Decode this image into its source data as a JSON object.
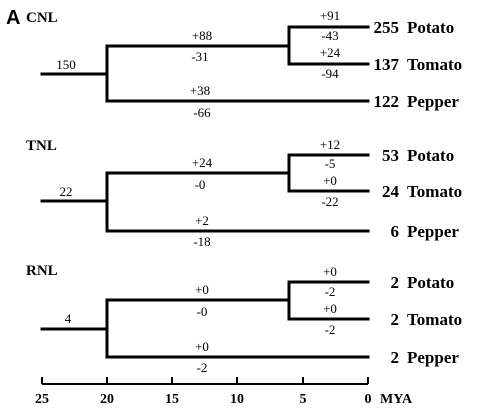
{
  "panel_label": "A",
  "families": [
    {
      "name": "CNL",
      "ancestor": "150",
      "pepper_branch": {
        "gain": "+38",
        "loss": "-66"
      },
      "solanum_branch": {
        "gain": "+88",
        "loss": "-31"
      },
      "potato_branch": {
        "gain": "+91",
        "loss": "-43"
      },
      "tomato_branch": {
        "gain": "+24",
        "loss": "-94"
      },
      "species": [
        {
          "count": "255",
          "name": "Potato"
        },
        {
          "count": "137",
          "name": "Tomato"
        },
        {
          "count": "122",
          "name": "Pepper"
        }
      ]
    },
    {
      "name": "TNL",
      "ancestor": "22",
      "pepper_branch": {
        "gain": "+2",
        "loss": "-18"
      },
      "solanum_branch": {
        "gain": "+24",
        "loss": "-0"
      },
      "potato_branch": {
        "gain": "+12",
        "loss": "-5"
      },
      "tomato_branch": {
        "gain": "+0",
        "loss": "-22"
      },
      "species": [
        {
          "count": "53",
          "name": "Potato"
        },
        {
          "count": "24",
          "name": "Tomato"
        },
        {
          "count": "6",
          "name": "Pepper"
        }
      ]
    },
    {
      "name": "RNL",
      "ancestor": "4",
      "pepper_branch": {
        "gain": "+0",
        "loss": "-2"
      },
      "solanum_branch": {
        "gain": "+0",
        "loss": "-0"
      },
      "potato_branch": {
        "gain": "+0",
        "loss": "-2"
      },
      "tomato_branch": {
        "gain": "+0",
        "loss": "-2"
      },
      "species": [
        {
          "count": "2",
          "name": "Potato"
        },
        {
          "count": "2",
          "name": "Tomato"
        },
        {
          "count": "2",
          "name": "Pepper"
        }
      ]
    }
  ],
  "axis": {
    "ticks": [
      "25",
      "20",
      "15",
      "10",
      "5",
      "0"
    ],
    "unit": "MYA"
  }
}
